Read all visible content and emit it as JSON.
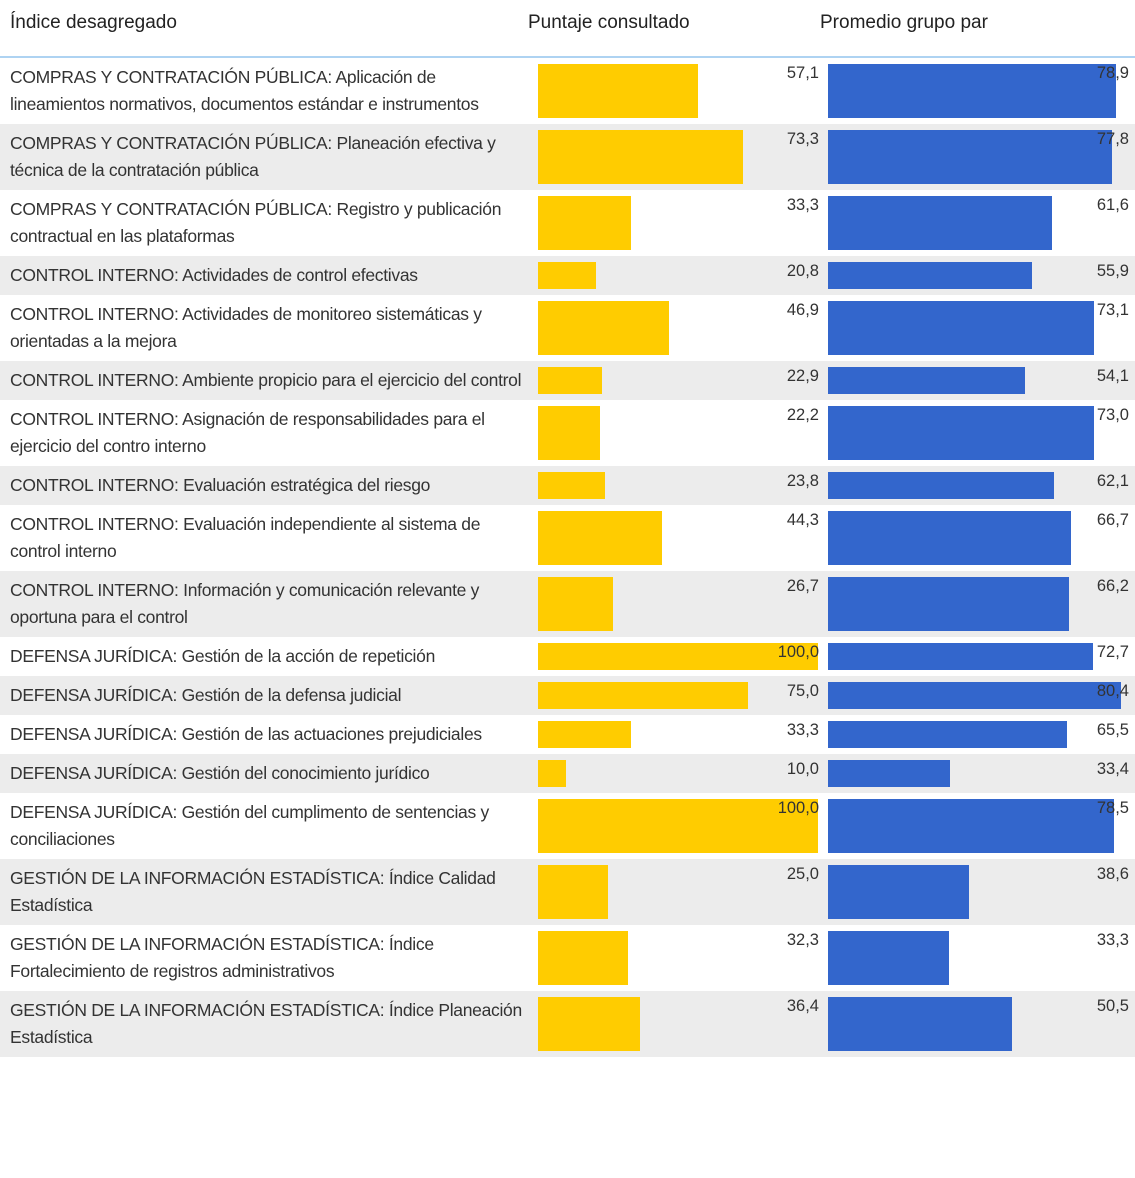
{
  "table": {
    "headers": [
      "Índice desagregado",
      "Puntaje consultado",
      "Promedio grupo par"
    ],
    "score_color": "#ffcc00",
    "peer_color": "#3366cc",
    "rows": [
      {
        "label": "COMPRAS Y CONTRATACIÓN PÚBLICA: Aplicación de lineamientos normativos, documentos estándar e instrumentos",
        "score": 57.1,
        "score_label": "57,1",
        "peer": 78.9,
        "peer_label": "78,9"
      },
      {
        "label": "COMPRAS Y CONTRATACIÓN PÚBLICA: Planeación efectiva y técnica de la contratación pública",
        "score": 73.3,
        "score_label": "73,3",
        "peer": 77.8,
        "peer_label": "77,8"
      },
      {
        "label": "COMPRAS Y CONTRATACIÓN PÚBLICA: Registro y publicación contractual en las plataformas",
        "score": 33.3,
        "score_label": "33,3",
        "peer": 61.6,
        "peer_label": "61,6"
      },
      {
        "label": "CONTROL INTERNO: Actividades de control efectivas",
        "score": 20.8,
        "score_label": "20,8",
        "peer": 55.9,
        "peer_label": "55,9"
      },
      {
        "label": "CONTROL INTERNO: Actividades de monitoreo sistemáticas y orientadas a la mejora",
        "score": 46.9,
        "score_label": "46,9",
        "peer": 73.1,
        "peer_label": "73,1"
      },
      {
        "label": "CONTROL INTERNO: Ambiente propicio para el ejercicio del control",
        "score": 22.9,
        "score_label": "22,9",
        "peer": 54.1,
        "peer_label": "54,1"
      },
      {
        "label": "CONTROL INTERNO: Asignación de responsabilidades para el ejercicio del contro interno",
        "score": 22.2,
        "score_label": "22,2",
        "peer": 73.0,
        "peer_label": "73,0"
      },
      {
        "label": "CONTROL INTERNO: Evaluación estratégica del riesgo",
        "score": 23.8,
        "score_label": "23,8",
        "peer": 62.1,
        "peer_label": "62,1"
      },
      {
        "label": "CONTROL INTERNO: Evaluación independiente al sistema de control interno",
        "score": 44.3,
        "score_label": "44,3",
        "peer": 66.7,
        "peer_label": "66,7"
      },
      {
        "label": "CONTROL INTERNO: Información y comunicación relevante y oportuna para el control",
        "score": 26.7,
        "score_label": "26,7",
        "peer": 66.2,
        "peer_label": "66,2"
      },
      {
        "label": "DEFENSA JURÍDICA: Gestión de la acción de repetición",
        "score": 100.0,
        "score_label": "100,0",
        "peer": 72.7,
        "peer_label": "72,7"
      },
      {
        "label": "DEFENSA JURÍDICA: Gestión de la defensa judicial",
        "score": 75.0,
        "score_label": "75,0",
        "peer": 80.4,
        "peer_label": "80,4"
      },
      {
        "label": "DEFENSA JURÍDICA: Gestión de las actuaciones prejudiciales",
        "score": 33.3,
        "score_label": "33,3",
        "peer": 65.5,
        "peer_label": "65,5"
      },
      {
        "label": "DEFENSA JURÍDICA: Gestión del conocimiento jurídico",
        "score": 10.0,
        "score_label": "10,0",
        "peer": 33.4,
        "peer_label": "33,4"
      },
      {
        "label": "DEFENSA JURÍDICA: Gestión del cumplimento de sentencias y conciliaciones",
        "score": 100.0,
        "score_label": "100,0",
        "peer": 78.5,
        "peer_label": "78,5"
      },
      {
        "label": "GESTIÓN DE LA INFORMACIÓN ESTADÍSTICA: Índice Calidad Estadística",
        "score": 25.0,
        "score_label": "25,0",
        "peer": 38.6,
        "peer_label": "38,6"
      },
      {
        "label": "GESTIÓN DE LA INFORMACIÓN ESTADÍSTICA: Índice Fortalecimiento de registros administrativos",
        "score": 32.3,
        "score_label": "32,3",
        "peer": 33.3,
        "peer_label": "33,3"
      },
      {
        "label": "GESTIÓN DE LA INFORMACIÓN ESTADÍSTICA: Índice Planeación Estadística",
        "score": 36.4,
        "score_label": "36,4",
        "peer": 50.5,
        "peer_label": "50,5"
      }
    ]
  }
}
